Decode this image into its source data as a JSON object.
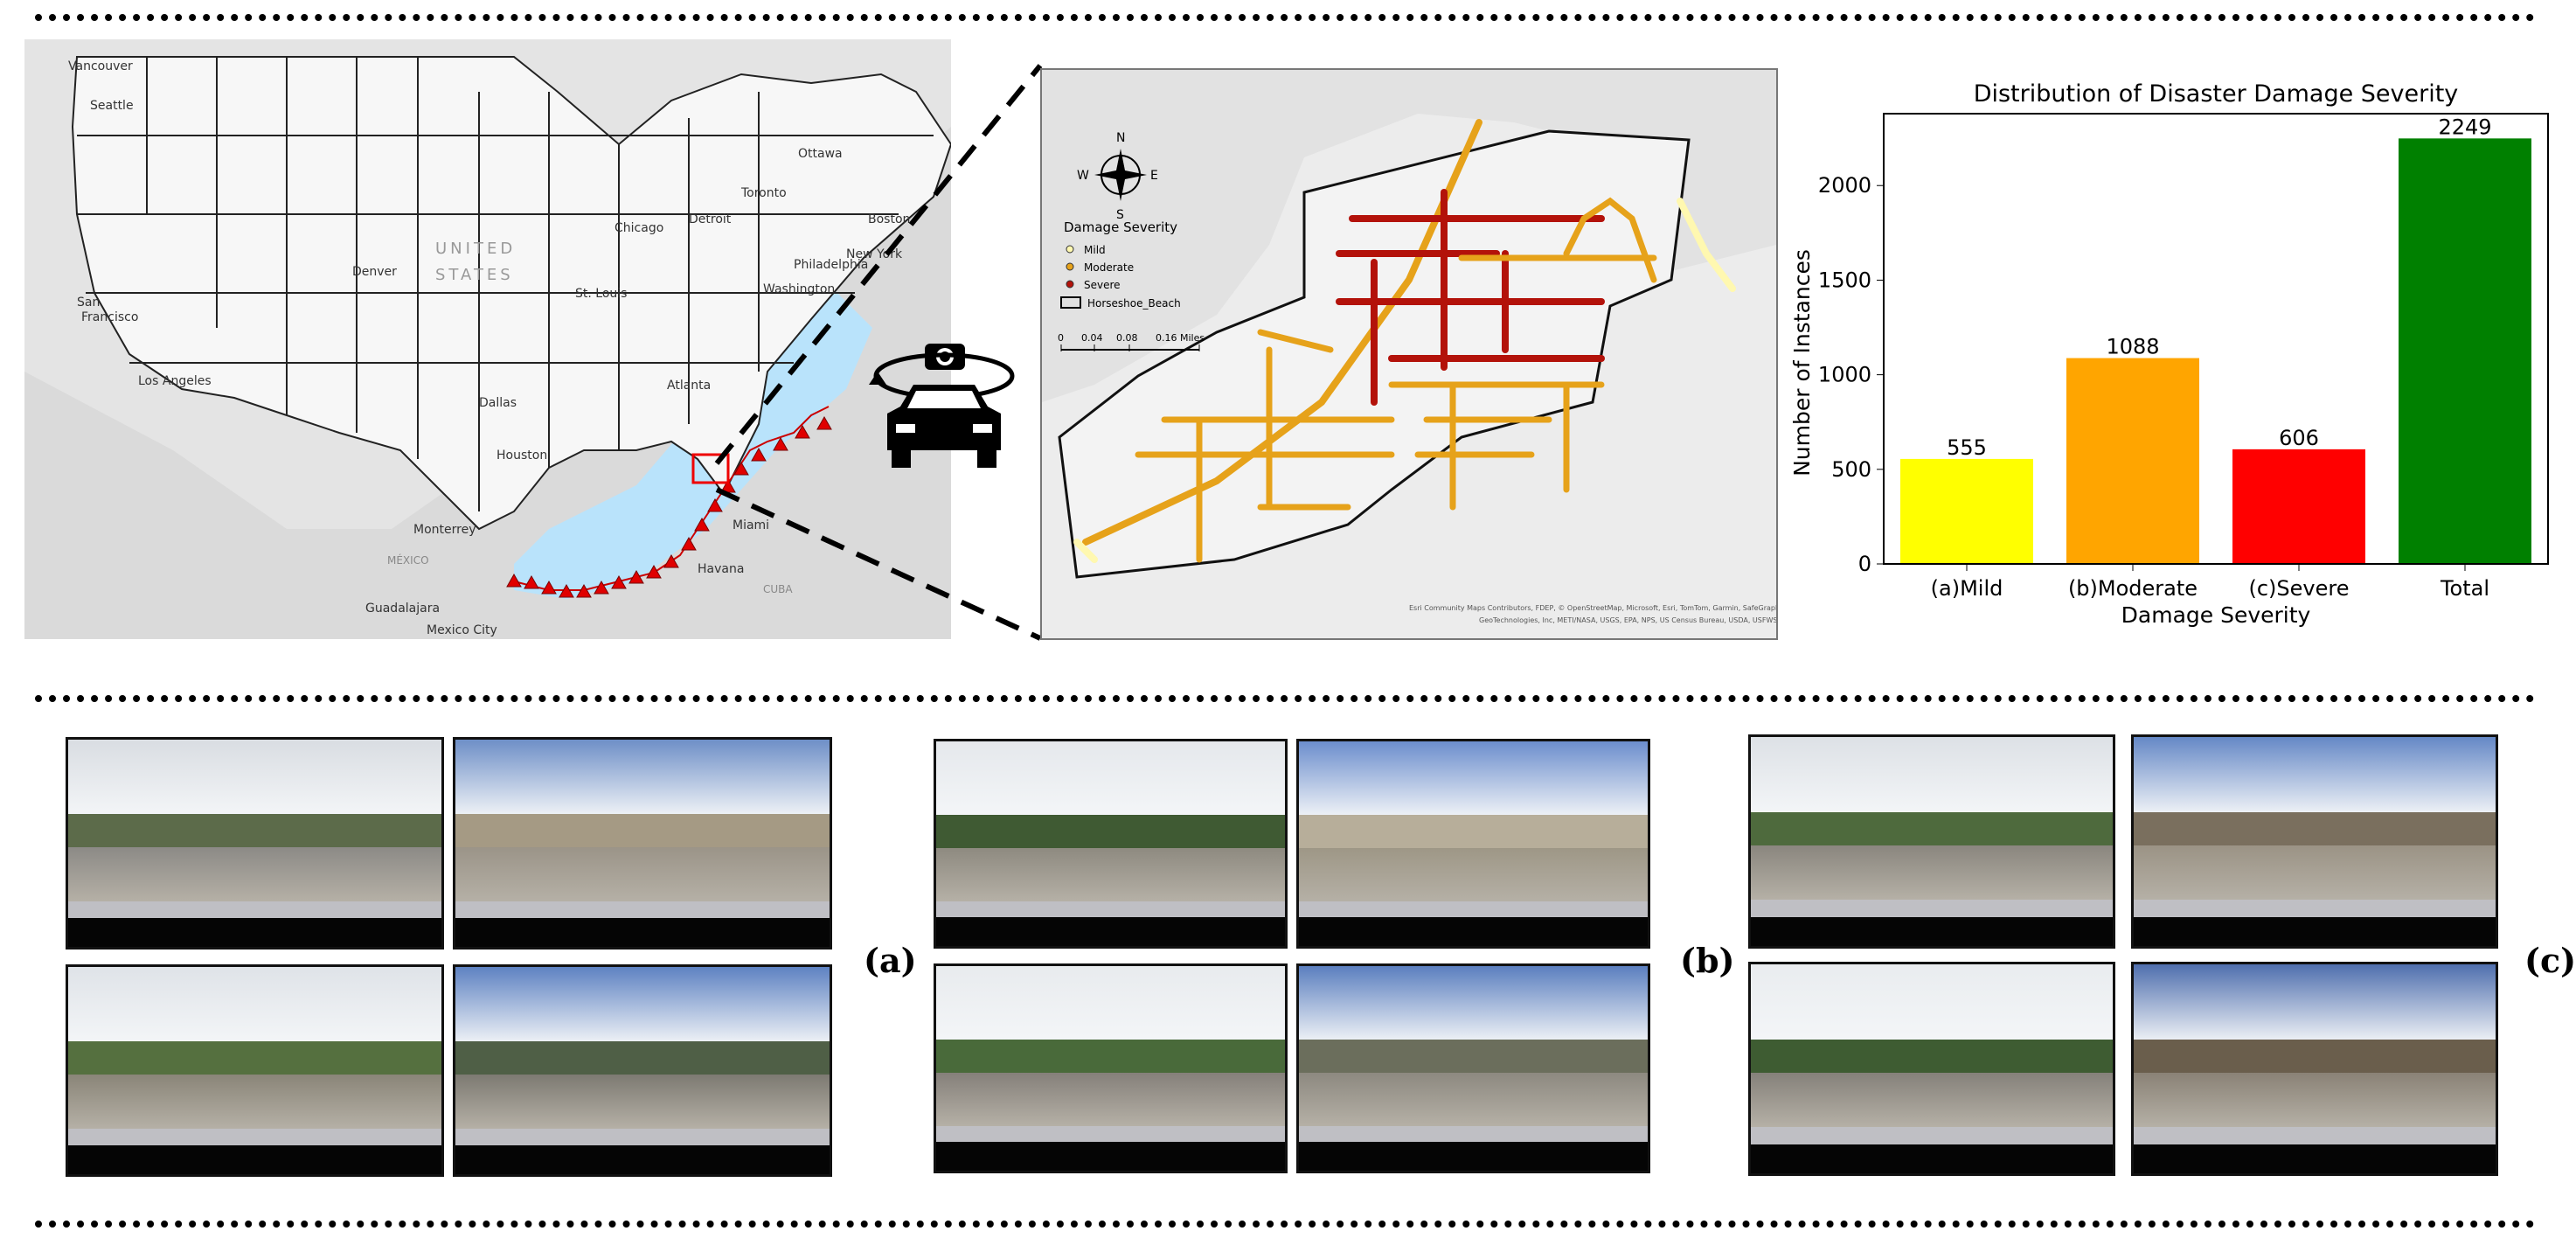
{
  "map_overview": {
    "country_label": "UNITED STATES",
    "cities": [
      "Vancouver",
      "Seattle",
      "San Francisco",
      "Los Angeles",
      "Denver",
      "Dallas",
      "Houston",
      "Monterrey",
      "MÉXICO",
      "Guadalajara",
      "Mexico City",
      "Chicago",
      "St. Louis",
      "Atlanta",
      "Detroit",
      "Toronto",
      "Ottawa",
      "Boston",
      "New York",
      "Philadelphia",
      "Washington",
      "Miami",
      "Havana",
      "CUBA"
    ]
  },
  "detail_map": {
    "legend_title": "Damage Severity",
    "legend_items": [
      {
        "label": "Mild",
        "color": "#fff8b0"
      },
      {
        "label": "Moderate",
        "color": "#e6a21a"
      },
      {
        "label": "Severe",
        "color": "#b3120a"
      }
    ],
    "boundary_label": "Horseshoe_Beach",
    "scale_labels": [
      "0",
      "0.04",
      "0.08",
      "0.16 Miles"
    ],
    "compass": [
      "N",
      "S",
      "E",
      "W"
    ],
    "attribution_1": "Esri Community Maps Contributors, FDEP, © OpenStreetMap, Microsoft, Esri, TomTom, Garmin, SafeGraph,",
    "attribution_2": "GeoTechnologies, Inc, METI/NASA, USGS, EPA, NPS, US Census Bureau, USDA, USFWS"
  },
  "chart_data": {
    "type": "bar",
    "title": "Distribution of Disaster Damage Severity",
    "xlabel": "Damage Severity",
    "ylabel": "Number of Instances",
    "categories": [
      "(a)Mild",
      "(b)Moderate",
      "(c)Severe",
      "Total"
    ],
    "values": [
      555,
      1088,
      606,
      2249
    ],
    "colors": [
      "#ffff00",
      "#ffa500",
      "#ff0000",
      "#008000"
    ],
    "ylim": [
      0,
      2380
    ],
    "yticks": [
      0,
      500,
      1000,
      1500,
      2000
    ],
    "grid": false
  },
  "panels": [
    {
      "label": "(a)"
    },
    {
      "label": "(b)"
    },
    {
      "label": "(c)"
    }
  ]
}
